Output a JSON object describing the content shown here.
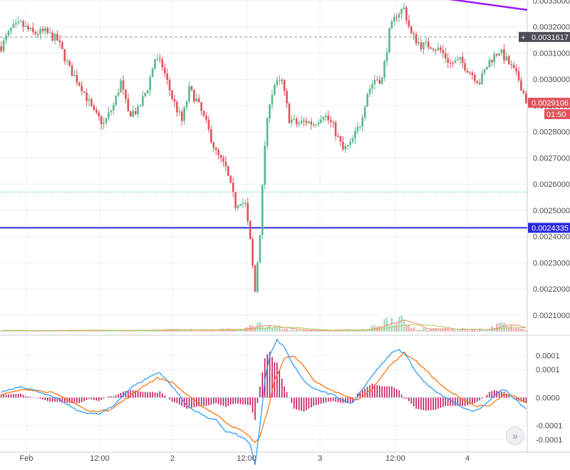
{
  "chart_data": [
    {
      "type": "candlestick",
      "title": "",
      "x_ticks": [
        "Feb",
        "12:00",
        "2",
        "12:00",
        "3",
        "12:00",
        "4"
      ],
      "y_ticks": [
        "0.0033000",
        "0.0032000",
        "0.0031000",
        "0.0030000",
        "0.0029000",
        "0.0028000",
        "0.0027000",
        "0.0026000",
        "0.0025000",
        "0.0024000",
        "0.0023000",
        "0.0022000",
        "0.0021000"
      ],
      "ylim": [
        0.00207,
        0.0033
      ],
      "grid": true,
      "price_path": [
        [
          0,
          0.003125
        ],
        [
          4,
          0.00319
        ],
        [
          8,
          0.00321
        ],
        [
          13,
          0.003175
        ],
        [
          18,
          0.00318
        ],
        [
          23,
          0.00315
        ],
        [
          28,
          0.00304
        ],
        [
          33,
          0.00297
        ],
        [
          38,
          0.00287
        ],
        [
          42,
          0.00283
        ],
        [
          46,
          0.0029
        ],
        [
          49,
          0.00299
        ],
        [
          52,
          0.00287
        ],
        [
          56,
          0.00288
        ],
        [
          60,
          0.00297
        ],
        [
          63,
          0.00308
        ],
        [
          66,
          0.00305
        ],
        [
          70,
          0.00293
        ],
        [
          74,
          0.00284
        ],
        [
          77,
          0.00296
        ],
        [
          80,
          0.00292
        ],
        [
          84,
          0.00283
        ],
        [
          88,
          0.00272
        ],
        [
          92,
          0.00266
        ],
        [
          96,
          0.00252
        ],
        [
          98,
          0.00254
        ],
        [
          100,
          0.00252
        ],
        [
          102,
          0.00238
        ],
        [
          104,
          0.00219
        ],
        [
          106,
          0.00242
        ],
        [
          108,
          0.00275
        ],
        [
          110,
          0.00292
        ],
        [
          112,
          0.00298
        ],
        [
          115,
          0.00299
        ],
        [
          118,
          0.00285
        ],
        [
          121,
          0.00283
        ],
        [
          125,
          0.00284
        ],
        [
          128,
          0.00283
        ],
        [
          132,
          0.00287
        ],
        [
          136,
          0.00282
        ],
        [
          140,
          0.00273
        ],
        [
          143,
          0.00275
        ],
        [
          147,
          0.00283
        ],
        [
          150,
          0.00295
        ],
        [
          153,
          0.003
        ],
        [
          156,
          0.003
        ],
        [
          159,
          0.00318
        ],
        [
          162,
          0.00325
        ],
        [
          165,
          0.00327
        ],
        [
          168,
          0.00317
        ],
        [
          172,
          0.00313
        ],
        [
          176,
          0.00313
        ],
        [
          180,
          0.00311
        ],
        [
          184,
          0.00306
        ],
        [
          188,
          0.00307
        ],
        [
          192,
          0.00303
        ],
        [
          196,
          0.00299
        ],
        [
          200,
          0.00307
        ],
        [
          204,
          0.00311
        ],
        [
          208,
          0.00306
        ],
        [
          212,
          0.003
        ],
        [
          215,
          0.00292
        ]
      ],
      "volume_profile": [
        [
          0,
          0.05
        ],
        [
          30,
          0.05
        ],
        [
          60,
          0.06
        ],
        [
          100,
          0.1
        ],
        [
          104,
          0.35
        ],
        [
          106,
          0.3
        ],
        [
          112,
          0.15
        ],
        [
          120,
          0.06
        ],
        [
          150,
          0.08
        ],
        [
          160,
          0.55
        ],
        [
          162,
          0.6
        ],
        [
          165,
          0.35
        ],
        [
          170,
          0.12
        ],
        [
          200,
          0.08
        ],
        [
          203,
          0.4
        ],
        [
          206,
          0.3
        ],
        [
          210,
          0.15
        ],
        [
          215,
          0.1
        ]
      ],
      "horizontal_lines": [
        {
          "label": "0.0031617",
          "value": 0.0031617,
          "style": "dashed",
          "color": "#9598a1"
        },
        {
          "label": "0.0029106",
          "value": 0.0029106,
          "style": "last-price",
          "color": "#e0535a",
          "countdown": "01:50"
        },
        {
          "value": 0.00257,
          "style": "dotted",
          "color": "#26a69a"
        },
        {
          "label": "0.0024335",
          "value": 0.0024335,
          "style": "solid",
          "color": "#2a2ade"
        }
      ],
      "trendline": {
        "color": "#9b19f5",
        "from": [
          0.00332,
          0.8
        ],
        "to": [
          0.003265,
          1.0
        ]
      },
      "colors": {
        "up": "#5ab88a",
        "down": "#e0535a",
        "grid": "#eef0f3",
        "axis_text": "#4a4a4a",
        "volume_ma1": "#f08a5d",
        "volume_ma2": "#b0c760"
      }
    },
    {
      "type": "macd",
      "y_ticks": [
        "0.0001",
        "0.0001",
        "0.0000",
        "-0.0001",
        "-0.0001"
      ],
      "y_tick_values": [
        0.00015,
        0.0001,
        0.0,
        -0.0001,
        -0.00015
      ],
      "ylim": [
        -0.00019,
        0.00021
      ],
      "macd_path": [
        [
          0,
          2e-05
        ],
        [
          8,
          4e-05
        ],
        [
          16,
          2e-05
        ],
        [
          24,
          -1e-05
        ],
        [
          32,
          -5e-05
        ],
        [
          40,
          -6e-05
        ],
        [
          46,
          -3e-05
        ],
        [
          50,
          1e-05
        ],
        [
          54,
          4e-05
        ],
        [
          58,
          6e-05
        ],
        [
          62,
          8e-05
        ],
        [
          65,
          9e-05
        ],
        [
          68,
          6e-05
        ],
        [
          72,
          2e-05
        ],
        [
          76,
          -3e-05
        ],
        [
          80,
          -5e-05
        ],
        [
          84,
          -7e-05
        ],
        [
          88,
          -8e-05
        ],
        [
          92,
          -0.00012
        ],
        [
          96,
          -0.00013
        ],
        [
          100,
          -0.00015
        ],
        [
          102,
          -0.00017
        ],
        [
          104,
          -0.00024
        ],
        [
          106,
          -0.0001
        ],
        [
          108,
          6e-05
        ],
        [
          110,
          0.00015
        ],
        [
          113,
          0.000205
        ],
        [
          116,
          0.00018
        ],
        [
          120,
          0.00011
        ],
        [
          124,
          6e-05
        ],
        [
          128,
          3e-05
        ],
        [
          132,
          2e-05
        ],
        [
          136,
          1e-05
        ],
        [
          140,
          -1e-05
        ],
        [
          144,
          -2e-05
        ],
        [
          148,
          3e-05
        ],
        [
          152,
          8e-05
        ],
        [
          156,
          0.00012
        ],
        [
          160,
          0.00016
        ],
        [
          163,
          0.00017
        ],
        [
          166,
          0.00015
        ],
        [
          170,
          9e-05
        ],
        [
          174,
          5e-05
        ],
        [
          178,
          2e-05
        ],
        [
          182,
          0.0
        ],
        [
          186,
          -2e-05
        ],
        [
          190,
          -4e-05
        ],
        [
          194,
          -5e-05
        ],
        [
          198,
          -3e-05
        ],
        [
          202,
          1e-05
        ],
        [
          206,
          3e-05
        ],
        [
          210,
          0.0
        ],
        [
          215,
          -4e-05
        ]
      ],
      "signal_path": [
        [
          0,
          1e-05
        ],
        [
          10,
          3e-05
        ],
        [
          20,
          2e-05
        ],
        [
          28,
          -1e-05
        ],
        [
          36,
          -5e-05
        ],
        [
          44,
          -4.5e-05
        ],
        [
          52,
          0.0
        ],
        [
          58,
          4e-05
        ],
        [
          64,
          7e-05
        ],
        [
          70,
          5.5e-05
        ],
        [
          76,
          1e-05
        ],
        [
          82,
          -3e-05
        ],
        [
          88,
          -6e-05
        ],
        [
          94,
          -0.0001
        ],
        [
          100,
          -0.000125
        ],
        [
          104,
          -0.00016
        ],
        [
          106,
          -0.00014
        ],
        [
          109,
          -5e-05
        ],
        [
          112,
          6e-05
        ],
        [
          116,
          0.00014
        ],
        [
          120,
          0.00015
        ],
        [
          124,
          0.00011
        ],
        [
          128,
          6e-05
        ],
        [
          134,
          3e-05
        ],
        [
          140,
          1e-05
        ],
        [
          146,
          -1e-05
        ],
        [
          152,
          3e-05
        ],
        [
          156,
          8e-05
        ],
        [
          160,
          0.00012
        ],
        [
          165,
          0.00016
        ],
        [
          170,
          0.00013
        ],
        [
          176,
          8e-05
        ],
        [
          182,
          3e-05
        ],
        [
          188,
          0.0
        ],
        [
          194,
          -3e-05
        ],
        [
          200,
          -3e-05
        ],
        [
          206,
          1e-05
        ],
        [
          210,
          5e-06
        ],
        [
          215,
          -2e-05
        ]
      ],
      "colors": {
        "macd": "#2196f3",
        "signal": "#ff6d00",
        "histogram_pos": "#c2185b",
        "histogram_neg": "#c2185b",
        "zero": "#c9ccd1"
      }
    }
  ],
  "ui": {
    "scroll_icon": "double-chevron-right-icon",
    "scroll_glyph": "»",
    "crosshair_glyph": "+"
  }
}
